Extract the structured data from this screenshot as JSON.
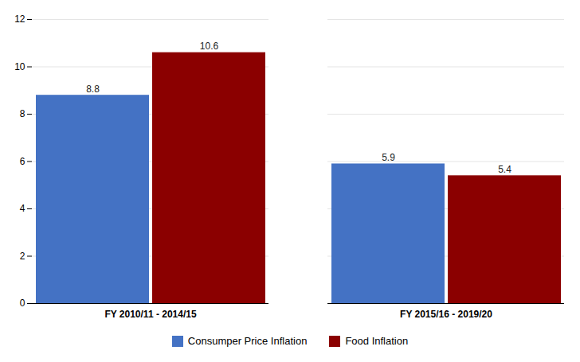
{
  "chart_data": {
    "type": "bar",
    "categories": [
      "FY 2010/11 - 2014/15",
      "FY 2015/16 - 2019/20"
    ],
    "series": [
      {
        "name": "Consumper Price Inflation",
        "color": "#4472C4",
        "values": [
          8.8,
          5.9
        ]
      },
      {
        "name": "Food Inflation",
        "color": "#8B0000",
        "values": [
          10.6,
          5.4
        ]
      }
    ],
    "ylim": [
      0,
      12
    ],
    "yticks": [
      0,
      2,
      4,
      6,
      8,
      10,
      12
    ],
    "grid": true,
    "data_labels": true,
    "legend": "bottom"
  }
}
